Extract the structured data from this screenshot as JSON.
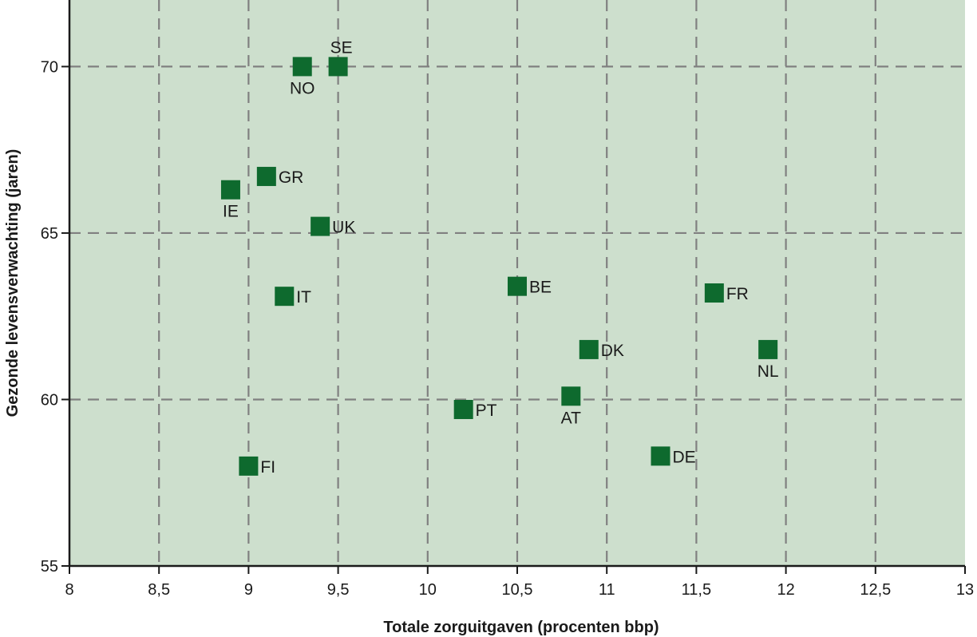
{
  "chart_data": {
    "type": "scatter",
    "xlabel": "Totale zorguitgaven (procenten bbp)",
    "ylabel": "Gezonde levensverwachting (jaren)",
    "xlim": [
      8,
      13
    ],
    "ylim": [
      55,
      72
    ],
    "x_ticks": [
      8,
      8.5,
      9,
      9.5,
      10,
      10.5,
      11,
      11.5,
      12,
      12.5,
      13
    ],
    "x_tick_labels": [
      "8",
      "8,5",
      "9",
      "9,5",
      "10",
      "10,5",
      "11",
      "11,5",
      "12",
      "12,5",
      "13"
    ],
    "y_ticks": [
      55,
      60,
      65,
      70
    ],
    "y_tick_labels": [
      "55",
      "60",
      "65",
      "70"
    ],
    "grid": true,
    "colors": {
      "background": "#cddfcd",
      "marker": "#0e6a2e",
      "grid": "#808080",
      "axis": "#1a1a1a"
    },
    "points": [
      {
        "label": "SE",
        "x": 9.5,
        "y": 70.0,
        "label_pos": "above"
      },
      {
        "label": "NO",
        "x": 9.3,
        "y": 70.0,
        "label_pos": "below"
      },
      {
        "label": "GR",
        "x": 9.1,
        "y": 66.7,
        "label_pos": "right"
      },
      {
        "label": "IE",
        "x": 8.9,
        "y": 66.3,
        "label_pos": "below"
      },
      {
        "label": "UK",
        "x": 9.4,
        "y": 65.2,
        "label_pos": "right"
      },
      {
        "label": "IT",
        "x": 9.2,
        "y": 63.1,
        "label_pos": "right"
      },
      {
        "label": "BE",
        "x": 10.5,
        "y": 63.4,
        "label_pos": "right"
      },
      {
        "label": "FR",
        "x": 11.6,
        "y": 63.2,
        "label_pos": "right"
      },
      {
        "label": "DK",
        "x": 10.9,
        "y": 61.5,
        "label_pos": "right"
      },
      {
        "label": "NL",
        "x": 11.9,
        "y": 61.5,
        "label_pos": "below"
      },
      {
        "label": "AT",
        "x": 10.8,
        "y": 60.1,
        "label_pos": "below"
      },
      {
        "label": "PT",
        "x": 10.2,
        "y": 59.7,
        "label_pos": "right"
      },
      {
        "label": "DE",
        "x": 11.3,
        "y": 58.3,
        "label_pos": "right"
      },
      {
        "label": "FI",
        "x": 9.0,
        "y": 58.0,
        "label_pos": "right"
      }
    ]
  }
}
